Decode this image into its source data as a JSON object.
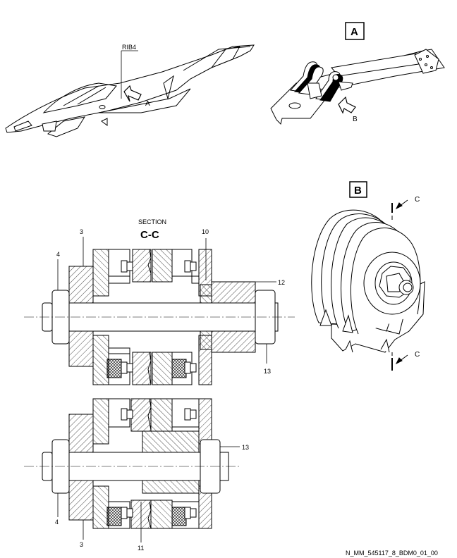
{
  "aircraft_view": {
    "rib_label": "RIB4",
    "arrow_label": "A"
  },
  "detail_a": {
    "box_label": "A",
    "arrow_label": "B"
  },
  "detail_b": {
    "box_label": "B",
    "cut_label_top": "C",
    "cut_label_bottom": "C"
  },
  "section_cc": {
    "heading_small": "SECTION",
    "heading_large": "C-C"
  },
  "callouts": {
    "item_3_top": "3",
    "item_4_top": "4",
    "item_10": "10",
    "item_12": "12",
    "item_13_top": "13",
    "item_13_bottom": "13",
    "item_4_bottom": "4",
    "item_3_bottom": "3",
    "item_11": "11"
  },
  "figure_reference": "N_MM_545117_8_BDM0_01_00"
}
